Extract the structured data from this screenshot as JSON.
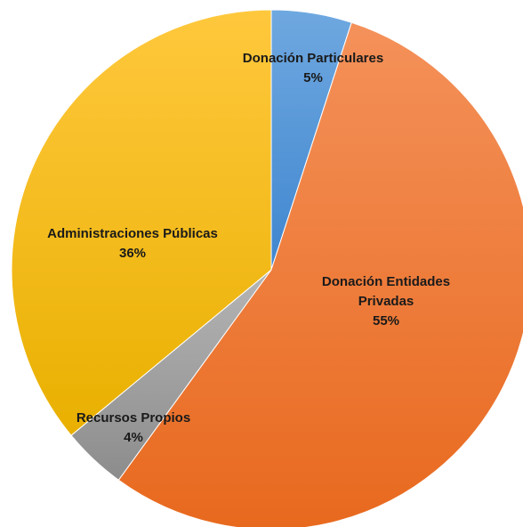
{
  "chart_data": {
    "type": "pie",
    "title": "",
    "start_angle_deg": 0,
    "direction": "clockwise",
    "slices": [
      {
        "label_lines": [
          "Donación Particulares"
        ],
        "pct_label": "5%",
        "value": 5,
        "color_light": "#6fa8e0",
        "color_dark": "#3f86cf"
      },
      {
        "label_lines": [
          "Donación Entidades",
          "Privadas"
        ],
        "pct_label": "55%",
        "value": 55,
        "color_light": "#f4915a",
        "color_dark": "#e8691e"
      },
      {
        "label_lines": [
          "Recursos Propios"
        ],
        "pct_label": "4%",
        "value": 4,
        "color_light": "#b5b5b5",
        "color_dark": "#8c8c8c"
      },
      {
        "label_lines": [
          "Administraciones Públicas"
        ],
        "pct_label": "36%",
        "value": 36,
        "color_light": "#ffc83d",
        "color_dark": "#e9b000"
      }
    ]
  }
}
